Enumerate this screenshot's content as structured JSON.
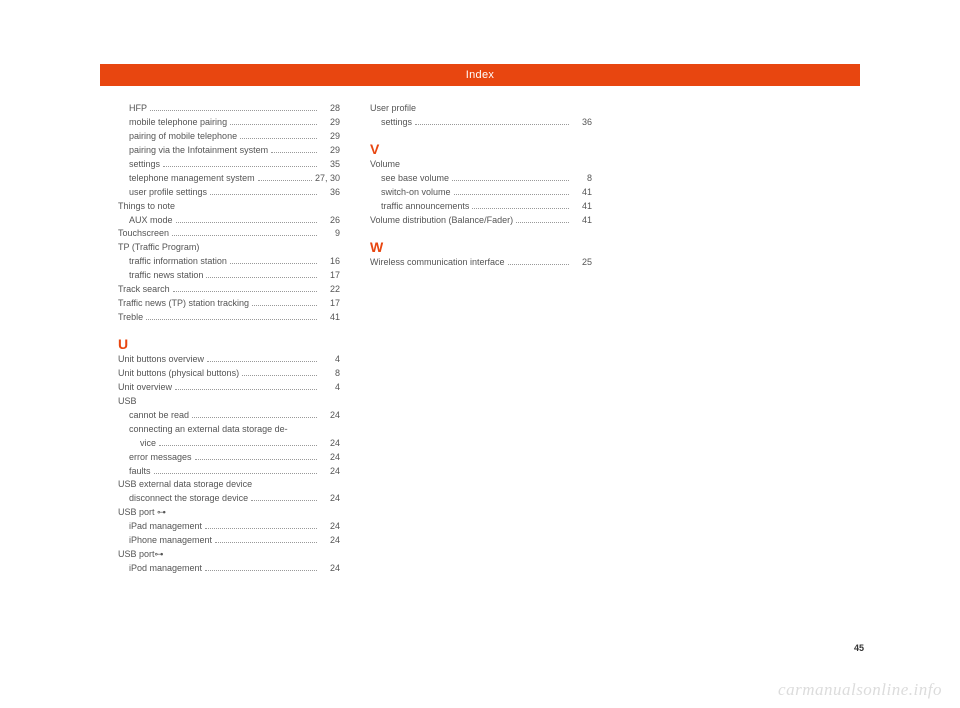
{
  "header": {
    "title": "Index"
  },
  "page_number": "45",
  "watermark": "carmanualsonline.info",
  "col1": {
    "items": [
      {
        "label": "HFP",
        "page": "28",
        "indent": 1
      },
      {
        "label": "mobile telephone pairing",
        "page": "29",
        "indent": 1
      },
      {
        "label": "pairing of mobile telephone",
        "page": "29",
        "indent": 1
      },
      {
        "label": "pairing via the Infotainment system",
        "page": "29",
        "indent": 1
      },
      {
        "label": "settings",
        "page": "35",
        "indent": 1
      },
      {
        "label": "telephone management system",
        "page": "27, 30",
        "indent": 1
      },
      {
        "label": "user profile settings",
        "page": "36",
        "indent": 1
      },
      {
        "label": "Things to note",
        "page": "",
        "indent": 0,
        "nopage": true
      },
      {
        "label": "AUX mode",
        "page": "26",
        "indent": 1
      },
      {
        "label": "Touchscreen",
        "page": "9",
        "indent": 0
      },
      {
        "label": "TP (Traffic Program)",
        "page": "",
        "indent": 0,
        "nopage": true
      },
      {
        "label": "traffic information station",
        "page": "16",
        "indent": 1
      },
      {
        "label": "traffic news station",
        "page": "17",
        "indent": 1
      },
      {
        "label": "Track search",
        "page": "22",
        "indent": 0
      },
      {
        "label": "Traffic news (TP) station tracking",
        "page": "17",
        "indent": 0
      },
      {
        "label": "Treble",
        "page": "41",
        "indent": 0
      }
    ],
    "sectionU": "U",
    "itemsU": [
      {
        "label": "Unit buttons overview",
        "page": "4",
        "indent": 0
      },
      {
        "label": "Unit buttons (physical buttons)",
        "page": "8",
        "indent": 0
      },
      {
        "label": "Unit overview",
        "page": "4",
        "indent": 0
      },
      {
        "label": "USB",
        "page": "",
        "indent": 0,
        "nopage": true
      },
      {
        "label": "cannot be read",
        "page": "24",
        "indent": 1
      },
      {
        "label": "connecting an external data storage de-",
        "page": "",
        "indent": 1,
        "nopage": true
      },
      {
        "label": "vice",
        "page": "24",
        "indent": 2
      },
      {
        "label": "error messages",
        "page": "24",
        "indent": 1
      },
      {
        "label": "faults",
        "page": "24",
        "indent": 1
      },
      {
        "label": "USB external data storage device",
        "page": "",
        "indent": 0,
        "nopage": true
      },
      {
        "label": "disconnect the storage device",
        "page": "24",
        "indent": 1
      },
      {
        "label": "USB port ⊶",
        "page": "",
        "indent": 0,
        "nopage": true
      },
      {
        "label": "iPad management",
        "page": "24",
        "indent": 1
      },
      {
        "label": "iPhone management",
        "page": "24",
        "indent": 1
      },
      {
        "label": "USB port⊶",
        "page": "",
        "indent": 0,
        "nopage": true
      },
      {
        "label": "iPod management",
        "page": "24",
        "indent": 1
      }
    ]
  },
  "col2": {
    "items": [
      {
        "label": "User profile",
        "page": "",
        "indent": 0,
        "nopage": true
      },
      {
        "label": "settings",
        "page": "36",
        "indent": 1
      }
    ],
    "sectionV": "V",
    "itemsV": [
      {
        "label": "Volume",
        "page": "",
        "indent": 0,
        "nopage": true
      },
      {
        "label": "see base volume",
        "page": "8",
        "indent": 1
      },
      {
        "label": "switch-on volume",
        "page": "41",
        "indent": 1
      },
      {
        "label": "traffic announcements",
        "page": "41",
        "indent": 1
      },
      {
        "label": "Volume distribution (Balance/Fader)",
        "page": "41",
        "indent": 0
      }
    ],
    "sectionW": "W",
    "itemsW": [
      {
        "label": "Wireless communication interface",
        "page": "25",
        "indent": 0
      }
    ]
  },
  "colors": {
    "accent": "#e84610",
    "text": "#555555",
    "watermark": "#dcdcdc",
    "background": "#ffffff"
  }
}
